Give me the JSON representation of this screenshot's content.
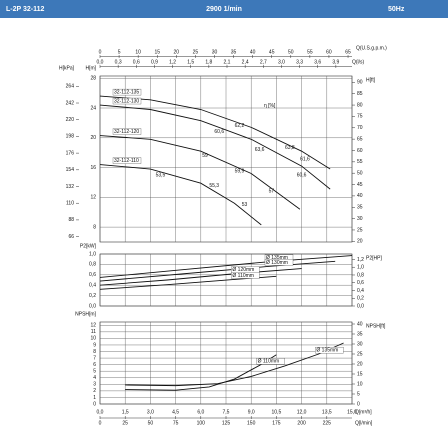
{
  "header": {
    "model": "L-2P 32-112",
    "speed": "2900 1/min",
    "frequency": "50Hz"
  },
  "chart_data": [
    {
      "type": "line",
      "color": "#111111",
      "grid": true,
      "xlim": [
        0,
        15
      ],
      "xticks": [
        0,
        1.5,
        3,
        4.5,
        6,
        7.5,
        9,
        10.5,
        12,
        13.5,
        15
      ],
      "top_axes": [
        {
          "label": "Q(U.S.g.p.m.)",
          "lim": [
            0,
            66.04
          ],
          "ticks": [
            0,
            5,
            10,
            15,
            20,
            25,
            30,
            35,
            40,
            45,
            50,
            55,
            60,
            65
          ]
        },
        {
          "label": "Q(l/s)",
          "lim": [
            0,
            4.1667
          ],
          "ticks": [
            {
              "value": 0,
              "label": "0,0"
            },
            {
              "value": 0.3,
              "label": "0,3"
            },
            {
              "value": 0.6,
              "label": "0,6"
            },
            {
              "value": 0.9,
              "label": "0,9"
            },
            {
              "value": 1.2,
              "label": "1,2"
            },
            {
              "value": 1.5,
              "label": "1,5"
            },
            {
              "value": 1.8,
              "label": "1,8"
            },
            {
              "value": 2.1,
              "label": "2,1"
            },
            {
              "value": 2.4,
              "label": "2,4"
            },
            {
              "value": 2.7,
              "label": "2,7"
            },
            {
              "value": 3.0,
              "label": "3,0"
            },
            {
              "value": 3.3,
              "label": "3,3"
            },
            {
              "value": 3.6,
              "label": "3,6"
            },
            {
              "value": 3.9,
              "label": "3,9"
            }
          ]
        }
      ],
      "ylabel": "H[m]",
      "ylim": [
        6,
        28.3
      ],
      "yticks": [
        8,
        12,
        16,
        20,
        24,
        28
      ],
      "y3label": "H[kPa]",
      "y3lim": [
        58.9,
        277.6
      ],
      "y3ticks": [
        66,
        88,
        110,
        132,
        154,
        176,
        198,
        220,
        242,
        264
      ],
      "y2label": "H[ft]",
      "y2lim": [
        19.7,
        92.8
      ],
      "y2ticks": [
        20,
        25,
        30,
        35,
        40,
        45,
        50,
        55,
        60,
        65,
        70,
        75,
        80,
        85,
        90
      ],
      "series": [
        {
          "name": "32-112-135",
          "x": [
            0,
            3,
            6,
            9,
            12,
            13.7
          ],
          "values": [
            25.6,
            25.1,
            23.8,
            21.4,
            18.2,
            15.8
          ]
        },
        {
          "name": "32-112-130",
          "x": [
            0,
            3,
            6,
            9,
            12,
            13.7
          ],
          "values": [
            24.4,
            23.8,
            22.3,
            19.8,
            16.2,
            13.1
          ]
        },
        {
          "name": "32-112-120",
          "x": [
            0,
            3,
            6,
            9,
            11.9
          ],
          "values": [
            20.3,
            19.8,
            18.2,
            15.2,
            10.4
          ]
        },
        {
          "name": "32-112-110",
          "x": [
            0,
            3,
            6,
            8,
            9.6
          ],
          "values": [
            16.4,
            15.8,
            13.9,
            11.2,
            8.3
          ]
        }
      ],
      "annotations": [
        {
          "text": "η [%]",
          "x": 10.1,
          "y": 24.3
        },
        {
          "text": "60,6",
          "x": 7.1,
          "y": 20.8
        },
        {
          "text": "62,2",
          "x": 8.3,
          "y": 21.6
        },
        {
          "text": "63,6",
          "x": 9.5,
          "y": 18.4
        },
        {
          "text": "63,8",
          "x": 11.3,
          "y": 18.7
        },
        {
          "text": "61,6",
          "x": 12.2,
          "y": 17.1
        },
        {
          "text": "59",
          "x": 6.25,
          "y": 17.6
        },
        {
          "text": "59,9",
          "x": 8.3,
          "y": 15.5
        },
        {
          "text": "60,6",
          "x": 12.0,
          "y": 15.0
        },
        {
          "text": "53,5",
          "x": 3.6,
          "y": 15.0
        },
        {
          "text": "55,3",
          "x": 6.8,
          "y": 13.6
        },
        {
          "text": "57",
          "x": 10.2,
          "y": 12.8
        },
        {
          "text": "53",
          "x": 8.6,
          "y": 11.0
        }
      ]
    },
    {
      "type": "line",
      "color": "#111111",
      "grid": true,
      "xlim": [
        0,
        15
      ],
      "xticks": [
        0,
        1.5,
        3,
        4.5,
        6,
        7.5,
        9,
        10.5,
        12,
        13.5,
        15
      ],
      "ylabel": "P2[kW]",
      "ylim": [
        0,
        1.0
      ],
      "yticks": [
        {
          "value": 0,
          "label": "0,0"
        },
        {
          "value": 0.2,
          "label": "0,2"
        },
        {
          "value": 0.4,
          "label": "0,4"
        },
        {
          "value": 0.6,
          "label": "0,6"
        },
        {
          "value": 0.8,
          "label": "0,8"
        },
        {
          "value": 1.0,
          "label": "1,0"
        }
      ],
      "y2label": "P2[HP]",
      "y2lim": [
        0,
        1.341
      ],
      "y2ticks": [
        {
          "value": 0,
          "label": "0,0"
        },
        {
          "value": 0.2,
          "label": "0,2"
        },
        {
          "value": 0.4,
          "label": "0,4"
        },
        {
          "value": 0.6,
          "label": "0,6"
        },
        {
          "value": 0.8,
          "label": "0,8"
        },
        {
          "value": 1.0,
          "label": "1,0"
        },
        {
          "value": 1.2,
          "label": "1,2"
        }
      ],
      "series": [
        {
          "name": "Ø 135mm",
          "x": [
            0,
            5,
            10,
            15
          ],
          "values": [
            0.55,
            0.7,
            0.85,
            0.97
          ]
        },
        {
          "name": "Ø 130mm",
          "x": [
            0,
            5,
            10,
            14
          ],
          "values": [
            0.48,
            0.62,
            0.76,
            0.86
          ]
        },
        {
          "name": "Ø 120mm",
          "x": [
            0,
            4,
            8,
            12
          ],
          "values": [
            0.4,
            0.5,
            0.62,
            0.72
          ]
        },
        {
          "name": "Ø 110mm",
          "x": [
            0,
            4,
            8,
            10.5
          ],
          "values": [
            0.32,
            0.41,
            0.51,
            0.57
          ]
        }
      ]
    },
    {
      "type": "line",
      "color": "#111111",
      "grid": true,
      "xlabel": "Q[m³/h]",
      "xlim": [
        0,
        15
      ],
      "xticks": [
        {
          "value": 0,
          "label": "0,0"
        },
        {
          "value": 1.5,
          "label": "1,5"
        },
        {
          "value": 3,
          "label": "3,0"
        },
        {
          "value": 4.5,
          "label": "4,5"
        },
        {
          "value": 6,
          "label": "6,0"
        },
        {
          "value": 7.5,
          "label": "7,5"
        },
        {
          "value": 9,
          "label": "9,0"
        },
        {
          "value": 10.5,
          "label": "10,5"
        },
        {
          "value": 12,
          "label": "12,0"
        },
        {
          "value": 13.5,
          "label": "13,5"
        },
        {
          "value": 15,
          "label": "15,0"
        }
      ],
      "bottom_axis": {
        "label": "Q[l/min]",
        "lim": [
          0,
          250
        ],
        "ticks": [
          0,
          25,
          50,
          75,
          100,
          125,
          150,
          175,
          200,
          225
        ]
      },
      "ylabel": "NPSH[m]",
      "ylim": [
        0,
        12.5
      ],
      "yticks": [
        0,
        1,
        2,
        3,
        4,
        5,
        6,
        7,
        8,
        9,
        10,
        11,
        12
      ],
      "y2label": "NPSH[ft]",
      "y2lim": [
        0,
        41.0
      ],
      "y2ticks": [
        0,
        5,
        10,
        15,
        20,
        25,
        30,
        35,
        40
      ],
      "series": [
        {
          "name": "Ø 135mm",
          "x": [
            1.5,
            4.5,
            7,
            9,
            11,
            13,
            14.5
          ],
          "values": [
            2.9,
            2.8,
            3.1,
            4.2,
            5.8,
            7.6,
            9.3
          ]
        },
        {
          "name": "Ø 110mm",
          "x": [
            1.5,
            4.5,
            6.5,
            8,
            9.5,
            10.5
          ],
          "values": [
            2.2,
            2.1,
            2.6,
            3.8,
            5.9,
            7.5
          ]
        }
      ]
    }
  ]
}
